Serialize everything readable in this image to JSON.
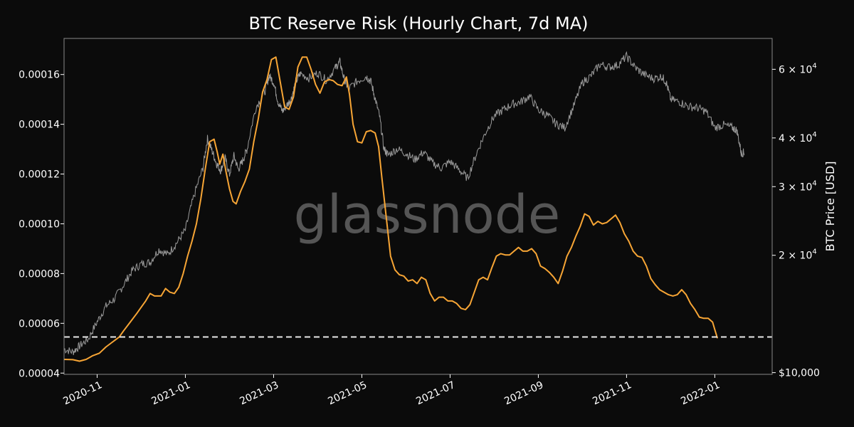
{
  "chart_data": {
    "type": "line",
    "title": "BTC Reserve Risk (Hourly Chart, 7d MA)",
    "watermark": "glassnode",
    "xlabel": "",
    "ylabel_left": "",
    "ylabel_right": "BTC Price [USD]",
    "x_ticks": [
      "2020-11",
      "2021-01",
      "2021-03",
      "2021-05",
      "2021-07",
      "2021-09",
      "2021-11",
      "2022-01"
    ],
    "x_tick_months": [
      1,
      3,
      5,
      7,
      9,
      11,
      13,
      15
    ],
    "x_range_months": [
      0.25,
      16.3
    ],
    "ylim_left": [
      3.95e-05,
      0.0001745
    ],
    "y_left_ticks": [
      "0.00004",
      "0.00006",
      "0.00008",
      "0.00010",
      "0.00012",
      "0.00014",
      "0.00016"
    ],
    "y_left_tick_values": [
      4e-05,
      6e-05,
      8e-05,
      0.0001,
      0.00012,
      0.00014,
      0.00016
    ],
    "ylim_right": [
      9900,
      72000
    ],
    "right_scale": "log",
    "y_right_ticks": [
      {
        "value": 10000,
        "label": "$10,000"
      },
      {
        "value": 20000,
        "mantissa": "2",
        "base": "10",
        "exp": "4"
      },
      {
        "value": 30000,
        "mantissa": "3",
        "base": "10",
        "exp": "4"
      },
      {
        "value": 40000,
        "mantissa": "4",
        "base": "10",
        "exp": "4"
      },
      {
        "value": 60000,
        "mantissa": "6",
        "base": "10",
        "exp": "4"
      }
    ],
    "threshold": 5.45e-05,
    "colors": {
      "reserve_risk": "#f7a535",
      "price": "#9a9a9a",
      "threshold": "#e8e8e8",
      "background": "#0b0b0b"
    },
    "series": [
      {
        "name": "Reserve Risk",
        "axis": "left",
        "points": [
          [
            0.25,
            4.55e-05
          ],
          [
            0.45,
            4.54e-05
          ],
          [
            0.6,
            4.48e-05
          ],
          [
            0.75,
            4.55e-05
          ],
          [
            0.9,
            4.7e-05
          ],
          [
            1.05,
            4.8e-05
          ],
          [
            1.2,
            5.05e-05
          ],
          [
            1.35,
            5.25e-05
          ],
          [
            1.5,
            5.45e-05
          ],
          [
            1.6,
            5.7e-05
          ],
          [
            1.75,
            6.05e-05
          ],
          [
            1.9,
            6.4e-05
          ],
          [
            2.0,
            6.65e-05
          ],
          [
            2.1,
            6.9e-05
          ],
          [
            2.2,
            7.2e-05
          ],
          [
            2.3,
            7.1e-05
          ],
          [
            2.45,
            7.1e-05
          ],
          [
            2.55,
            7.4e-05
          ],
          [
            2.65,
            7.25e-05
          ],
          [
            2.75,
            7.2e-05
          ],
          [
            2.85,
            7.45e-05
          ],
          [
            2.95,
            8e-05
          ],
          [
            3.05,
            8.7e-05
          ],
          [
            3.15,
            9.3e-05
          ],
          [
            3.25,
            0.0001
          ],
          [
            3.35,
            0.00011
          ],
          [
            3.45,
            0.000122
          ],
          [
            3.55,
            0.000133
          ],
          [
            3.65,
            0.000134
          ],
          [
            3.72,
            0.000129
          ],
          [
            3.78,
            0.000124
          ],
          [
            3.85,
            0.000128
          ],
          [
            3.92,
            0.000121
          ],
          [
            4.0,
            0.000114
          ],
          [
            4.08,
            0.000109
          ],
          [
            4.15,
            0.000108
          ],
          [
            4.25,
            0.000113
          ],
          [
            4.35,
            0.000117
          ],
          [
            4.45,
            0.000122
          ],
          [
            4.55,
            0.000133
          ],
          [
            4.65,
            0.000142
          ],
          [
            4.75,
            0.000153
          ],
          [
            4.85,
            0.000158
          ],
          [
            4.95,
            0.000166
          ],
          [
            5.05,
            0.000167
          ],
          [
            5.15,
            0.000157
          ],
          [
            5.25,
            0.000147
          ],
          [
            5.35,
            0.000146
          ],
          [
            5.45,
            0.000151
          ],
          [
            5.55,
            0.000163
          ],
          [
            5.65,
            0.000167
          ],
          [
            5.75,
            0.000167
          ],
          [
            5.85,
            0.000162
          ],
          [
            5.95,
            0.000156
          ],
          [
            6.05,
            0.0001525
          ],
          [
            6.15,
            0.000157
          ],
          [
            6.25,
            0.000158
          ],
          [
            6.35,
            0.0001575
          ],
          [
            6.45,
            0.000156
          ],
          [
            6.55,
            0.0001555
          ],
          [
            6.65,
            0.000159
          ],
          [
            6.72,
            0.000152
          ],
          [
            6.8,
            0.00014
          ],
          [
            6.9,
            0.000133
          ],
          [
            7.0,
            0.0001325
          ],
          [
            7.1,
            0.000137
          ],
          [
            7.2,
            0.0001375
          ],
          [
            7.3,
            0.0001365
          ],
          [
            7.38,
            0.000131
          ],
          [
            7.45,
            0.000119
          ],
          [
            7.55,
            0.000103
          ],
          [
            7.65,
            8.7e-05
          ],
          [
            7.75,
            8.15e-05
          ],
          [
            7.85,
            7.95e-05
          ],
          [
            7.95,
            7.9e-05
          ],
          [
            8.05,
            7.7e-05
          ],
          [
            8.15,
            7.75e-05
          ],
          [
            8.25,
            7.6e-05
          ],
          [
            8.35,
            7.85e-05
          ],
          [
            8.45,
            7.75e-05
          ],
          [
            8.55,
            7.2e-05
          ],
          [
            8.65,
            6.9e-05
          ],
          [
            8.75,
            7.05e-05
          ],
          [
            8.85,
            7.05e-05
          ],
          [
            8.95,
            6.9e-05
          ],
          [
            9.05,
            6.9e-05
          ],
          [
            9.15,
            6.8e-05
          ],
          [
            9.25,
            6.6e-05
          ],
          [
            9.35,
            6.55e-05
          ],
          [
            9.45,
            6.75e-05
          ],
          [
            9.55,
            7.25e-05
          ],
          [
            9.65,
            7.75e-05
          ],
          [
            9.75,
            7.85e-05
          ],
          [
            9.85,
            7.75e-05
          ],
          [
            9.95,
            8.25e-05
          ],
          [
            10.05,
            8.7e-05
          ],
          [
            10.15,
            8.8e-05
          ],
          [
            10.25,
            8.75e-05
          ],
          [
            10.35,
            8.75e-05
          ],
          [
            10.45,
            8.9e-05
          ],
          [
            10.55,
            9.05e-05
          ],
          [
            10.65,
            8.9e-05
          ],
          [
            10.75,
            8.9e-05
          ],
          [
            10.85,
            9e-05
          ],
          [
            10.95,
            8.8e-05
          ],
          [
            11.05,
            8.3e-05
          ],
          [
            11.15,
            8.2e-05
          ],
          [
            11.25,
            8.05e-05
          ],
          [
            11.35,
            7.85e-05
          ],
          [
            11.45,
            7.6e-05
          ],
          [
            11.55,
            8.1e-05
          ],
          [
            11.65,
            8.7e-05
          ],
          [
            11.75,
            9.05e-05
          ],
          [
            11.85,
            9.5e-05
          ],
          [
            11.95,
            9.9e-05
          ],
          [
            12.05,
            0.000104
          ],
          [
            12.15,
            0.000103
          ],
          [
            12.25,
            9.95e-05
          ],
          [
            12.35,
            0.000101
          ],
          [
            12.45,
            0.0001
          ],
          [
            12.55,
            0.0001005
          ],
          [
            12.65,
            0.000102
          ],
          [
            12.75,
            0.0001035
          ],
          [
            12.85,
            0.0001005
          ],
          [
            12.95,
            9.6e-05
          ],
          [
            13.05,
            9.3e-05
          ],
          [
            13.15,
            8.9e-05
          ],
          [
            13.25,
            8.7e-05
          ],
          [
            13.35,
            8.65e-05
          ],
          [
            13.45,
            8.3e-05
          ],
          [
            13.55,
            7.8e-05
          ],
          [
            13.65,
            7.55e-05
          ],
          [
            13.75,
            7.35e-05
          ],
          [
            13.85,
            7.25e-05
          ],
          [
            13.95,
            7.15e-05
          ],
          [
            14.05,
            7.1e-05
          ],
          [
            14.15,
            7.15e-05
          ],
          [
            14.25,
            7.35e-05
          ],
          [
            14.35,
            7.15e-05
          ],
          [
            14.45,
            6.8e-05
          ],
          [
            14.55,
            6.55e-05
          ],
          [
            14.65,
            6.25e-05
          ],
          [
            14.75,
            6.2e-05
          ],
          [
            14.85,
            6.2e-05
          ],
          [
            14.95,
            6.05e-05
          ],
          [
            15.0,
            5.75e-05
          ],
          [
            15.06,
            5.4e-05
          ]
        ]
      },
      {
        "name": "BTC Price",
        "axis": "right",
        "points": [
          [
            0.25,
            11500
          ],
          [
            0.45,
            11300
          ],
          [
            0.6,
            11700
          ],
          [
            0.8,
            12200
          ],
          [
            1.0,
            13500
          ],
          [
            1.2,
            14800
          ],
          [
            1.4,
            15500
          ],
          [
            1.6,
            16800
          ],
          [
            1.8,
            18300
          ],
          [
            2.0,
            19000
          ],
          [
            2.2,
            19200
          ],
          [
            2.4,
            20700
          ],
          [
            2.6,
            20100
          ],
          [
            2.8,
            21500
          ],
          [
            3.0,
            23200
          ],
          [
            3.2,
            28500
          ],
          [
            3.4,
            33500
          ],
          [
            3.5,
            39800
          ],
          [
            3.6,
            37200
          ],
          [
            3.7,
            34500
          ],
          [
            3.8,
            33000
          ],
          [
            3.9,
            35500
          ],
          [
            4.0,
            32200
          ],
          [
            4.1,
            36000
          ],
          [
            4.2,
            33200
          ],
          [
            4.3,
            35000
          ],
          [
            4.4,
            37500
          ],
          [
            4.6,
            48000
          ],
          [
            4.8,
            52500
          ],
          [
            4.9,
            57800
          ],
          [
            5.0,
            55500
          ],
          [
            5.1,
            49500
          ],
          [
            5.2,
            46800
          ],
          [
            5.3,
            48500
          ],
          [
            5.4,
            50500
          ],
          [
            5.5,
            55500
          ],
          [
            5.6,
            58500
          ],
          [
            5.8,
            57000
          ],
          [
            6.0,
            58800
          ],
          [
            6.2,
            56200
          ],
          [
            6.4,
            60500
          ],
          [
            6.5,
            62800
          ],
          [
            6.6,
            56500
          ],
          [
            6.7,
            53500
          ],
          [
            6.9,
            56000
          ],
          [
            7.1,
            57500
          ],
          [
            7.2,
            56000
          ],
          [
            7.3,
            50500
          ],
          [
            7.4,
            45500
          ],
          [
            7.5,
            37500
          ],
          [
            7.6,
            36200
          ],
          [
            7.8,
            37500
          ],
          [
            8.0,
            36500
          ],
          [
            8.2,
            35200
          ],
          [
            8.4,
            36800
          ],
          [
            8.6,
            34500
          ],
          [
            8.8,
            33500
          ],
          [
            9.0,
            34800
          ],
          [
            9.2,
            33200
          ],
          [
            9.4,
            31500
          ],
          [
            9.6,
            36500
          ],
          [
            9.8,
            41200
          ],
          [
            10.0,
            45500
          ],
          [
            10.2,
            47200
          ],
          [
            10.4,
            48800
          ],
          [
            10.6,
            49500
          ],
          [
            10.8,
            51200
          ],
          [
            11.0,
            47200
          ],
          [
            11.2,
            45800
          ],
          [
            11.4,
            43500
          ],
          [
            11.6,
            42500
          ],
          [
            11.8,
            48200
          ],
          [
            12.0,
            55500
          ],
          [
            12.2,
            57800
          ],
          [
            12.4,
            61800
          ],
          [
            12.6,
            60800
          ],
          [
            12.8,
            61500
          ],
          [
            13.0,
            64800
          ],
          [
            13.2,
            60500
          ],
          [
            13.4,
            58200
          ],
          [
            13.6,
            56800
          ],
          [
            13.8,
            57500
          ],
          [
            13.9,
            55500
          ],
          [
            14.0,
            50200
          ],
          [
            14.2,
            49500
          ],
          [
            14.4,
            48200
          ],
          [
            14.6,
            47800
          ],
          [
            14.8,
            46800
          ],
          [
            15.0,
            42500
          ],
          [
            15.2,
            43200
          ],
          [
            15.4,
            42500
          ],
          [
            15.5,
            41800
          ],
          [
            15.6,
            36500
          ],
          [
            15.67,
            36800
          ]
        ]
      }
    ]
  }
}
